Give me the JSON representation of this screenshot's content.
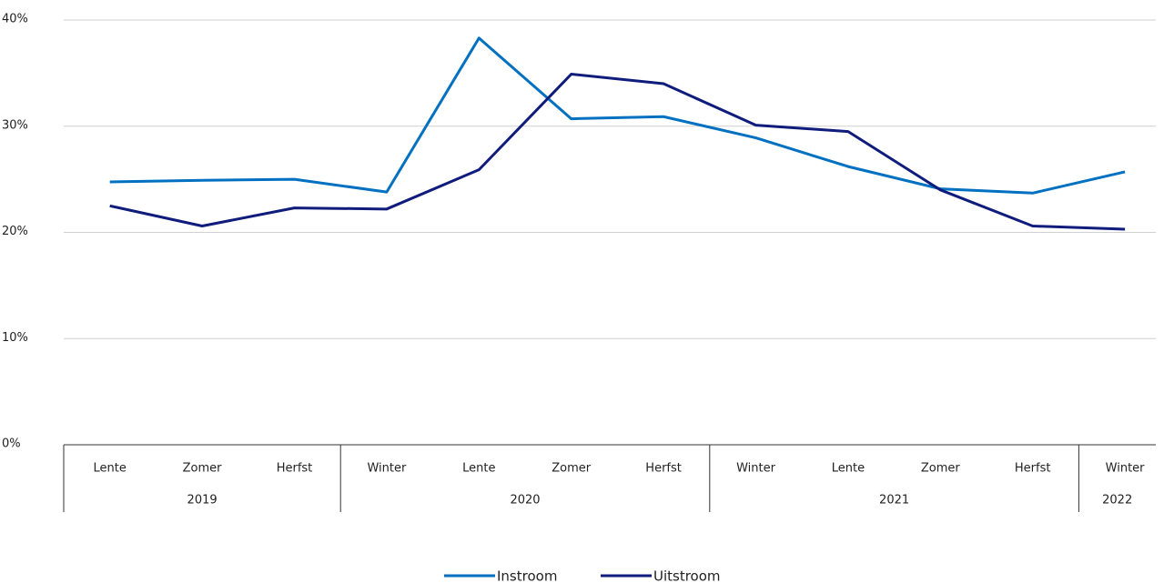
{
  "chart_data": {
    "type": "line",
    "groups": [
      {
        "label": "2019",
        "categories": [
          "Lente",
          "Zomer",
          "Herfst"
        ]
      },
      {
        "label": "2020",
        "categories": [
          "Winter",
          "Lente",
          "Zomer",
          "Herfst"
        ]
      },
      {
        "label": "2021",
        "categories": [
          "Winter",
          "Lente",
          "Zomer",
          "Herfst"
        ]
      },
      {
        "label": "2022",
        "categories": [
          "Winter"
        ]
      }
    ],
    "series": [
      {
        "name": "Instroom",
        "color": "#0070c0",
        "values": [
          24.75,
          24.9,
          25.0,
          23.8,
          38.3,
          30.7,
          30.9,
          28.9,
          26.2,
          24.1,
          23.7,
          25.7
        ]
      },
      {
        "name": "Uitstroom",
        "color": "#0f1c7c",
        "values": [
          22.5,
          20.6,
          22.3,
          22.2,
          25.9,
          34.9,
          34.0,
          30.1,
          29.5,
          24.0,
          20.6,
          20.3
        ]
      }
    ],
    "ylim": [
      0,
      40
    ],
    "yticks": [
      {
        "value": 0,
        "label": "0%"
      },
      {
        "value": 10,
        "label": "10%"
      },
      {
        "value": 20,
        "label": "20%"
      },
      {
        "value": 30,
        "label": "30%"
      },
      {
        "value": 40,
        "label": "40%"
      }
    ],
    "grid": true,
    "legend": "bottom"
  }
}
